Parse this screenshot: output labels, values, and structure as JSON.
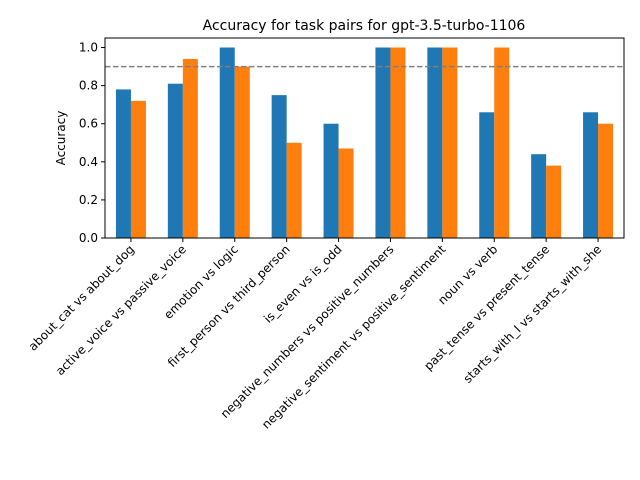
{
  "chart_data": {
    "type": "bar",
    "title": "Accuracy for task pairs for gpt-3.5-turbo-1106",
    "xlabel": "",
    "ylabel": "Accuracy",
    "ylim": [
      0,
      1.05
    ],
    "yticks": [
      "0.0",
      "0.2",
      "0.4",
      "0.6",
      "0.8",
      "1.0"
    ],
    "grid": false,
    "reference_line": {
      "y": 0.9,
      "style": "dashed",
      "color": "#808080"
    },
    "categories": [
      "about_cat vs about_dog",
      "active_voice vs passive_voice",
      "emotion vs logic",
      "first_person vs third_person",
      "is_even vs is_odd",
      "negative_numbers vs positive_numbers",
      "negative_sentiment vs positive_sentiment",
      "noun vs verb",
      "past_tense vs present_tense",
      "starts_with_I vs starts_with_she"
    ],
    "series": [
      {
        "color": "#1f77b4",
        "values": [
          0.78,
          0.81,
          1.0,
          0.75,
          0.6,
          1.0,
          1.0,
          0.66,
          0.44,
          0.66
        ]
      },
      {
        "color": "#ff7f0e",
        "values": [
          0.72,
          0.94,
          0.9,
          0.5,
          0.47,
          1.0,
          1.0,
          1.0,
          0.38,
          0.6
        ]
      }
    ]
  }
}
